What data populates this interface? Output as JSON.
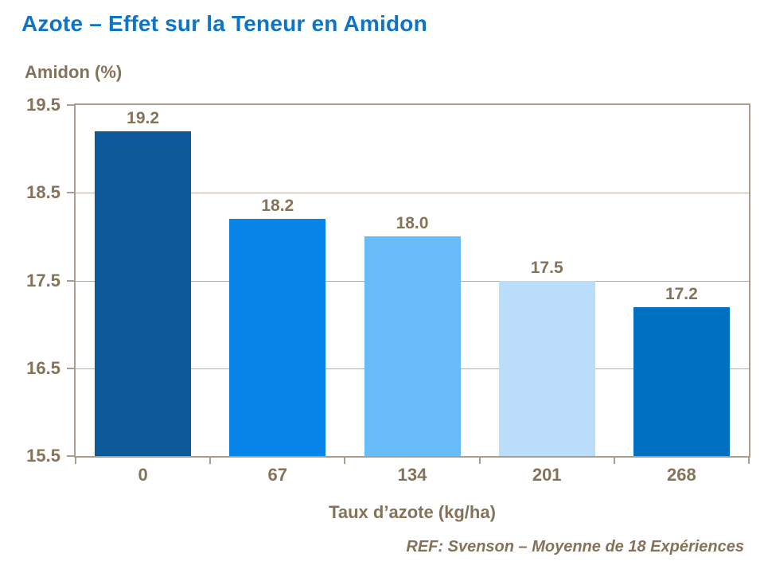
{
  "title": "Azote – Effet sur la Teneur en Amidon",
  "footer": {
    "reference": "REF: Svenson – Moyenne de 18 Expériences"
  },
  "colors": {
    "title_blue": "#0E74C8",
    "text_brown": "#857359",
    "axis_line": "#A99D8D",
    "gridline": "#B7ADA1"
  },
  "chart_data": {
    "type": "bar",
    "title": "Azote – Effet sur la Teneur en Amidon",
    "categories": [
      "0",
      "67",
      "134",
      "201",
      "268"
    ],
    "values": [
      19.2,
      18.2,
      18.0,
      17.5,
      17.2
    ],
    "value_labels": [
      "19.2",
      "18.2",
      "18.0",
      "17.5",
      "17.2"
    ],
    "bar_colors": [
      "#0D5A9B",
      "#0784E8",
      "#69BCFA",
      "#B9DDFB",
      "#0070C2"
    ],
    "xlabel": "Taux d’azote (kg/ha)",
    "ylabel": "Amidon (%)",
    "ylim": [
      15.5,
      19.5
    ],
    "yticks": [
      19.5,
      18.5,
      17.5,
      16.5,
      15.5
    ],
    "ytick_labels": [
      "19.5",
      "18.5",
      "17.5",
      "16.5",
      "15.5"
    ],
    "grid": true,
    "legend": "none"
  }
}
